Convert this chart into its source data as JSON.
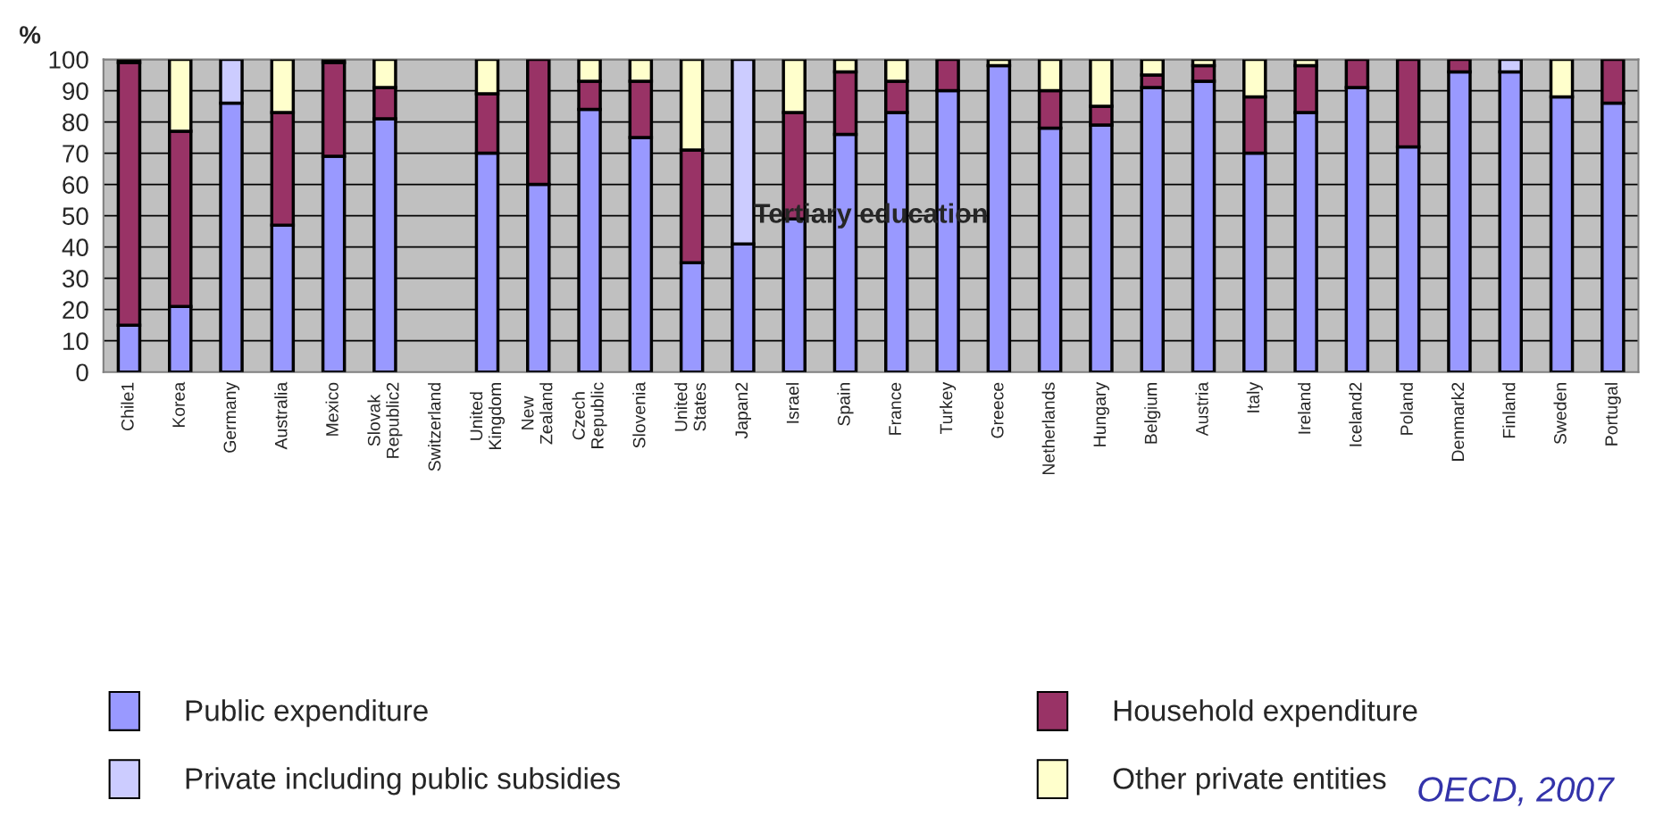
{
  "chart_data": {
    "type": "bar",
    "stacked": true,
    "ylabel": "%",
    "categories": [
      "Chile1",
      "Korea",
      "Germany",
      "Australia",
      "Mexico",
      "Slovak\nRepublic2",
      "Switzerland",
      "United\nKingdom",
      "New\nZealand",
      "Czech\nRepublic",
      "Slovenia",
      "United\nStates",
      "Japan2",
      "Israel",
      "Spain",
      "France",
      "Turkey",
      "Greece",
      "Netherlands",
      "Hungary",
      "Belgium",
      "Austria",
      "Italy",
      "Ireland",
      "Iceland2",
      "Poland",
      "Denmark2",
      "Finland",
      "Sweden",
      "Portugal"
    ],
    "series": [
      {
        "name": "Public expenditure",
        "color": "#9999ff",
        "values": [
          15,
          21,
          86,
          47,
          69,
          81,
          null,
          70,
          60,
          84,
          75,
          35,
          41,
          49,
          76,
          83,
          90,
          98,
          78,
          79,
          91,
          93,
          70,
          83,
          91,
          72,
          96,
          96,
          88,
          86
        ]
      },
      {
        "name": "Private including public subsidies",
        "color": "#ccccff",
        "values": [
          null,
          null,
          14,
          null,
          null,
          null,
          null,
          null,
          null,
          null,
          null,
          null,
          59,
          null,
          null,
          null,
          null,
          null,
          null,
          null,
          null,
          null,
          null,
          null,
          null,
          null,
          null,
          4,
          null,
          null
        ]
      },
      {
        "name": "Household expenditure",
        "color": "#993366",
        "values": [
          84,
          56,
          null,
          36,
          30,
          10,
          null,
          19,
          40,
          9,
          18,
          36,
          null,
          34,
          20,
          10,
          10,
          null,
          12,
          6,
          4,
          5,
          18,
          15,
          9,
          28,
          4,
          null,
          null,
          14
        ]
      },
      {
        "name": "Other private entities",
        "color": "#ffffcc",
        "values": [
          1,
          23,
          null,
          17,
          1,
          9,
          null,
          11,
          null,
          7,
          7,
          29,
          null,
          17,
          4,
          7,
          null,
          2,
          10,
          15,
          5,
          2,
          12,
          2,
          null,
          null,
          null,
          null,
          12,
          null
        ]
      }
    ],
    "ylim": [
      0,
      100
    ],
    "yticks": [
      0,
      10,
      20,
      30,
      40,
      50,
      60,
      70,
      80,
      90,
      100
    ],
    "grid": "y",
    "legend": "bottom",
    "annotations": [
      "Tertiary education",
      "OECD, 2007"
    ]
  }
}
